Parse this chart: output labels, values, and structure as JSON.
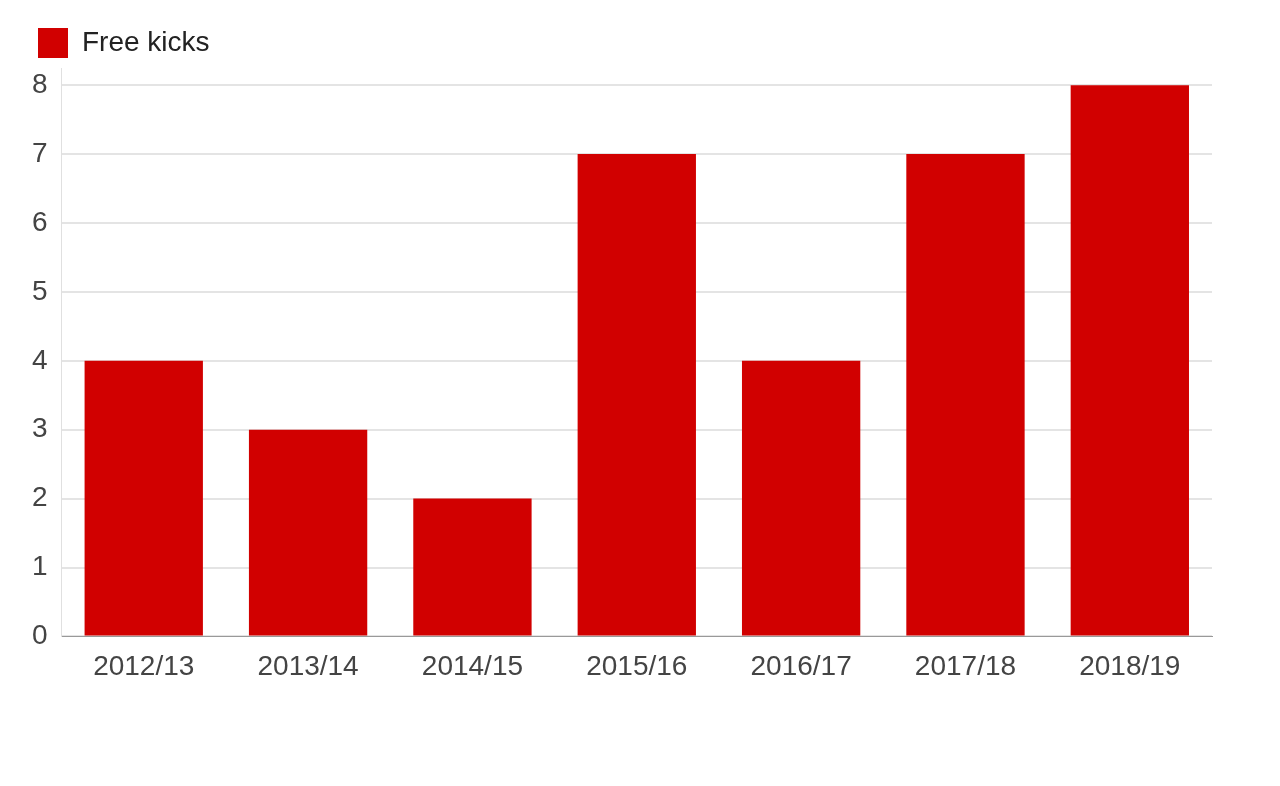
{
  "chart_data": {
    "type": "bar",
    "categories": [
      "2012/13",
      "2013/14",
      "2014/15",
      "2015/16",
      "2016/17",
      "2017/18",
      "2018/19"
    ],
    "series": [
      {
        "name": "Free kicks",
        "color": "#d10000",
        "values": [
          4,
          3,
          2,
          7,
          4,
          7,
          8
        ]
      }
    ],
    "ylim": [
      0,
      8.25
    ],
    "yticks": [
      0,
      1,
      2,
      3,
      4,
      5,
      6,
      7,
      8
    ],
    "grid": "y",
    "legend": "top left"
  }
}
